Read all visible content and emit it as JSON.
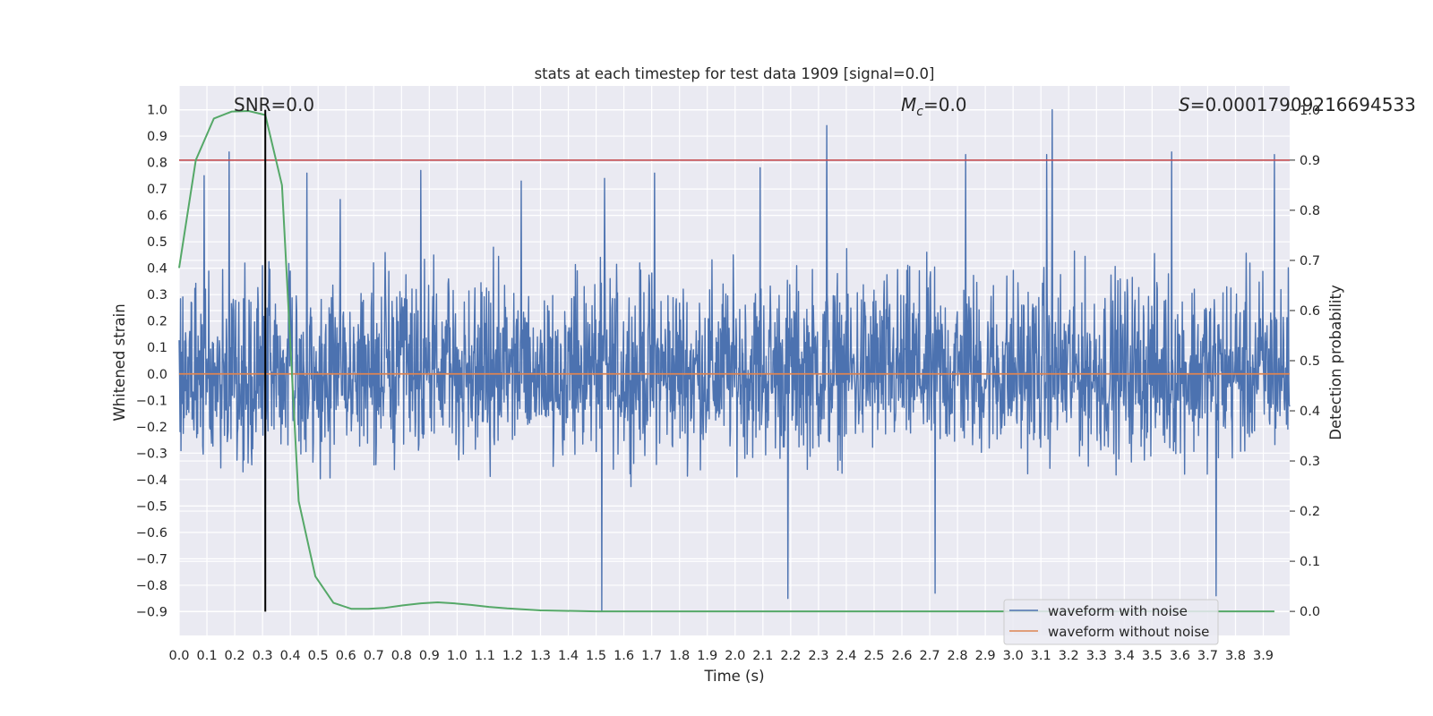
{
  "chart_data": {
    "type": "line",
    "title": "stats at each timestep for test data 1909 [signal=0.0]",
    "xlabel": "Time (s)",
    "ylabel_left": "Whitened strain",
    "ylabel_right": "Detection probability",
    "xlim": [
      0.0,
      3.995
    ],
    "ylim_left": [
      -0.99,
      1.09
    ],
    "ylim_right": [
      -0.048,
      1.048
    ],
    "x_ticks": [
      "0.0",
      "0.1",
      "0.2",
      "0.3",
      "0.4",
      "0.5",
      "0.6",
      "0.7",
      "0.8",
      "0.9",
      "1.0",
      "1.1",
      "1.2",
      "1.3",
      "1.4",
      "1.5",
      "1.6",
      "1.7",
      "1.8",
      "1.9",
      "2.0",
      "2.1",
      "2.2",
      "2.3",
      "2.4",
      "2.5",
      "2.6",
      "2.7",
      "2.8",
      "2.9",
      "3.0",
      "3.1",
      "3.2",
      "3.3",
      "3.4",
      "3.5",
      "3.6",
      "3.7",
      "3.8",
      "3.9"
    ],
    "y_left_ticks": [
      "1.0",
      "0.9",
      "0.8",
      "0.7",
      "0.6",
      "0.5",
      "0.4",
      "0.3",
      "0.2",
      "0.1",
      "0.0",
      "−0.1",
      "−0.2",
      "−0.3",
      "−0.4",
      "−0.5",
      "−0.6",
      "−0.7",
      "−0.8",
      "−0.9"
    ],
    "y_right_ticks": [
      "1.0",
      "0.9",
      "0.8",
      "0.7",
      "0.6",
      "0.5",
      "0.4",
      "0.3",
      "0.2",
      "0.1",
      "0.0"
    ],
    "grid": true,
    "legend_position": "lower-right",
    "annotations": {
      "snr": "SNR=0.0",
      "mc_symbol": "M",
      "mc_sub": "c",
      "mc_value": "=0.0",
      "s_symbol": "S",
      "s_value": "=0.00017909216694533"
    },
    "series": [
      {
        "name": "waveform with noise",
        "color": "#4c72b0",
        "kind": "noise",
        "approx_range": [
          -0.9,
          1.0
        ],
        "typical_envelope": [
          -0.45,
          0.55
        ],
        "spikes": [
          [
            0.09,
            0.75
          ],
          [
            0.18,
            0.84
          ],
          [
            0.31,
            0.65
          ],
          [
            0.31,
            -0.78
          ],
          [
            0.46,
            0.76
          ],
          [
            0.58,
            0.66
          ],
          [
            0.87,
            0.77
          ],
          [
            1.23,
            0.73
          ],
          [
            1.52,
            -0.9
          ],
          [
            1.53,
            0.74
          ],
          [
            1.71,
            0.76
          ],
          [
            2.09,
            0.78
          ],
          [
            2.19,
            -0.85
          ],
          [
            2.33,
            0.94
          ],
          [
            2.72,
            -0.83
          ],
          [
            2.83,
            0.83
          ],
          [
            3.12,
            0.83
          ],
          [
            3.14,
            1.0
          ],
          [
            3.57,
            0.84
          ],
          [
            3.73,
            -0.84
          ],
          [
            3.94,
            0.83
          ]
        ]
      },
      {
        "name": "waveform without noise",
        "color": "#dd8452",
        "x": [
          0.0,
          3.995
        ],
        "y": [
          0.0,
          0.0
        ]
      },
      {
        "name": "detection probability",
        "color": "#55a868",
        "axis": "right",
        "x": [
          0.0,
          0.06,
          0.125,
          0.19,
          0.25,
          0.31,
          0.37,
          0.43,
          0.49,
          0.555,
          0.62,
          0.68,
          0.74,
          0.805,
          0.87,
          0.93,
          0.99,
          1.05,
          1.115,
          1.18,
          1.3,
          1.5,
          2.0,
          3.0,
          3.94
        ],
        "y": [
          0.685,
          0.9,
          0.983,
          0.997,
          0.998,
          0.99,
          0.85,
          0.22,
          0.07,
          0.017,
          0.005,
          0.005,
          0.007,
          0.012,
          0.016,
          0.018,
          0.016,
          0.013,
          0.009,
          0.006,
          0.002,
          0.0,
          0.0,
          0.0,
          0.0
        ]
      }
    ],
    "lines": [
      {
        "name": "threshold",
        "orientation": "horizontal",
        "axis": "right",
        "value": 0.9,
        "color": "#c44e52"
      },
      {
        "name": "marker",
        "orientation": "vertical",
        "axis": "x",
        "value": 0.31,
        "from": -0.9,
        "to": 1.0,
        "color": "#000000"
      }
    ]
  }
}
